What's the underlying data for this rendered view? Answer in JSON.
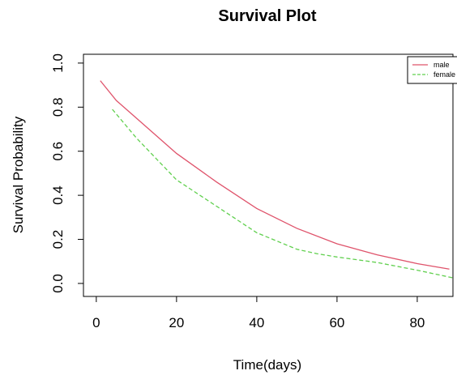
{
  "chart_data": {
    "type": "line",
    "title": "Survival Plot",
    "x_label": "Time(days)",
    "y_label": "Survival Probability",
    "xlim": [
      -3.2,
      88.9
    ],
    "xticks": [
      0,
      20,
      40,
      60,
      80
    ],
    "ylim": [
      -0.059,
      1.04
    ],
    "yticks": [
      {
        "value": 0,
        "label": "0.0"
      },
      0.2,
      0.4,
      0.6,
      0.8,
      {
        "value": 1,
        "label": "1.0"
      }
    ],
    "legend": "top-right",
    "series": [
      {
        "name": "male",
        "color": "#DF536B",
        "dash": "solid",
        "x": [
          1,
          5,
          10,
          20,
          30,
          40,
          50,
          60,
          70,
          80,
          88
        ],
        "values": [
          0.92,
          0.83,
          0.75,
          0.59,
          0.46,
          0.34,
          0.25,
          0.18,
          0.13,
          0.09,
          0.065
        ]
      },
      {
        "name": "female",
        "color": "#61D04F",
        "dash": "dashed",
        "x": [
          4,
          10,
          20,
          30,
          40,
          50,
          55,
          60,
          70,
          80,
          89
        ],
        "values": [
          0.79,
          0.66,
          0.47,
          0.35,
          0.23,
          0.155,
          0.135,
          0.12,
          0.095,
          0.06,
          0.025
        ]
      }
    ]
  }
}
